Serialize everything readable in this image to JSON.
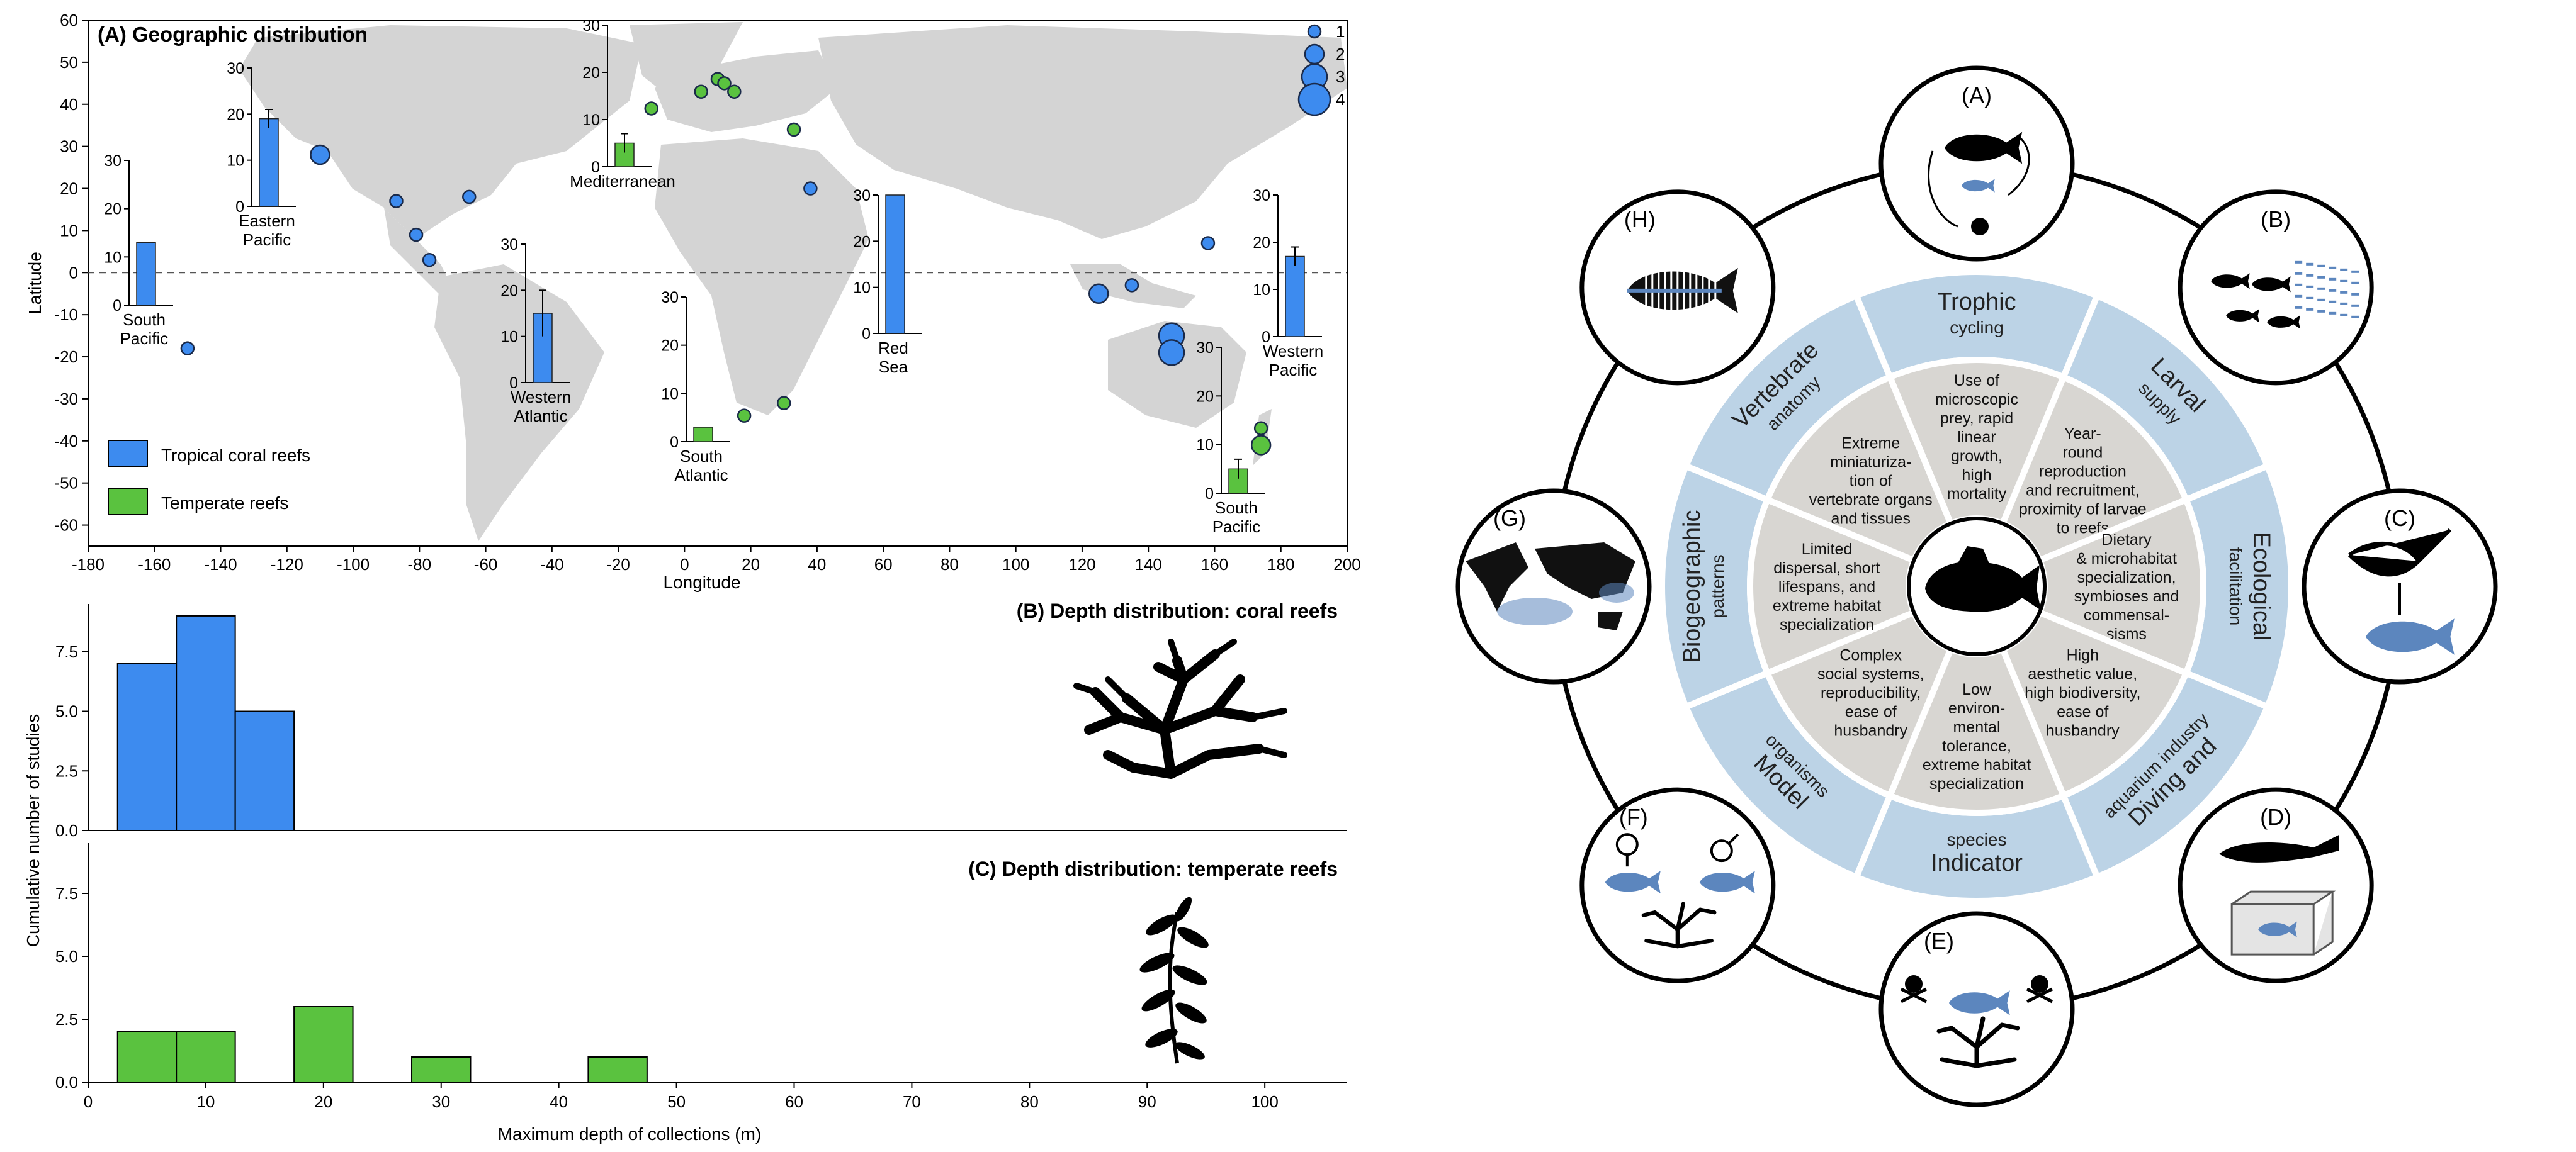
{
  "colors": {
    "tropical": "#3d8bef",
    "temperate": "#5ac23f",
    "land": "#d4d4d4",
    "ring_blue": "#bcd3e6",
    "ring_grey": "#d8d6d2",
    "fish_blue": "#5c86be"
  },
  "panelA": {
    "title": "(A) Geographic distribution",
    "xlabel": "Longitude",
    "ylabel": "Latitude",
    "legend_sizes": [
      "1",
      "2",
      "3",
      "4"
    ],
    "legend_entries": [
      "Tropical coral reefs",
      "Temperate reefs"
    ],
    "insets": [
      {
        "label": "South Pacific",
        "lines": [
          "South",
          "Pacific"
        ],
        "value": 13,
        "err": 0,
        "type": "tropical"
      },
      {
        "label": "Eastern Pacific",
        "lines": [
          "Eastern",
          "Pacific"
        ],
        "value": 19,
        "err": 2,
        "type": "tropical"
      },
      {
        "label": "Western Atlantic",
        "lines": [
          "Western",
          "Atlantic"
        ],
        "value": 15,
        "err": 5,
        "type": "tropical"
      },
      {
        "label": "Mediterranean",
        "lines": [
          "Mediterranean"
        ],
        "value": 5,
        "err": 2,
        "type": "temperate"
      },
      {
        "label": "South Atlantic",
        "lines": [
          "South",
          "Atlantic"
        ],
        "value": 3,
        "err": 0,
        "type": "temperate"
      },
      {
        "label": "Red Sea",
        "lines": [
          "Red",
          "Sea"
        ],
        "value": 30,
        "err": 0,
        "type": "tropical"
      },
      {
        "label": "South Pacific",
        "lines": [
          "South",
          "Pacific"
        ],
        "value": 5,
        "err": 2,
        "type": "temperate"
      },
      {
        "label": "Western Pacific",
        "lines": [
          "Western",
          "Pacific"
        ],
        "value": 17,
        "err": 2,
        "type": "tropical"
      }
    ]
  },
  "chart_data": [
    {
      "type": "scatter",
      "title": "(A) Geographic distribution",
      "xlabel": "Longitude",
      "ylabel": "Latitude",
      "xlim": [
        -180,
        200
      ],
      "ylim": [
        -65,
        60
      ],
      "xticks": [
        -180,
        -160,
        -140,
        -120,
        -100,
        -80,
        -60,
        -40,
        -20,
        0,
        20,
        40,
        60,
        80,
        100,
        120,
        140,
        160,
        180,
        200
      ],
      "yticks": [
        -60,
        -50,
        -40,
        -30,
        -20,
        -10,
        0,
        10,
        20,
        30,
        40,
        50,
        60
      ],
      "series": [
        {
          "name": "Tropical coral reefs",
          "points": [
            {
              "lon": -150,
              "lat": -18,
              "n": 1
            },
            {
              "lon": -110,
              "lat": 28,
              "n": 2
            },
            {
              "lon": -87,
              "lat": 17,
              "n": 1
            },
            {
              "lon": -81,
              "lat": 9,
              "n": 1
            },
            {
              "lon": -77,
              "lat": 3,
              "n": 1
            },
            {
              "lon": -65,
              "lat": 18,
              "n": 1
            },
            {
              "lon": 38,
              "lat": 20,
              "n": 1
            },
            {
              "lon": 125,
              "lat": -5,
              "n": 2
            },
            {
              "lon": 135,
              "lat": -3,
              "n": 1
            },
            {
              "lon": 147,
              "lat": -15,
              "n": 3
            },
            {
              "lon": 147,
              "lat": -19,
              "n": 3
            },
            {
              "lon": 158,
              "lat": 7,
              "n": 1
            }
          ]
        },
        {
          "name": "Temperate reefs",
          "points": [
            {
              "lon": -10,
              "lat": 39,
              "n": 1
            },
            {
              "lon": 5,
              "lat": 43,
              "n": 1
            },
            {
              "lon": 10,
              "lat": 46,
              "n": 1
            },
            {
              "lon": 12,
              "lat": 45,
              "n": 1
            },
            {
              "lon": 15,
              "lat": 43,
              "n": 1
            },
            {
              "lon": 33,
              "lat": 34,
              "n": 1
            },
            {
              "lon": 18,
              "lat": -34,
              "n": 1
            },
            {
              "lon": 30,
              "lat": -31,
              "n": 1
            },
            {
              "lon": 174,
              "lat": -37,
              "n": 1
            },
            {
              "lon": 174,
              "lat": -41,
              "n": 2
            }
          ]
        }
      ]
    },
    {
      "type": "bar",
      "title": "(B) Depth distribution: coral reefs",
      "ylabel": "Cumulative number of studies",
      "x": [
        "2.5-7.5",
        "7.5-12.5",
        "12.5-17.5"
      ],
      "values": [
        7,
        9,
        5
      ],
      "ylim": [
        0,
        9.5
      ],
      "yticks": [
        "0.0",
        "2.5",
        "5.0",
        "7.5"
      ]
    },
    {
      "type": "bar",
      "title": "(C) Depth distribution: temperate reefs",
      "xlabel": "Maximum depth of collections (m)",
      "ylabel": "Cumulative number of studies",
      "x": [
        "2.5-7.5",
        "7.5-12.5",
        "17.5-22.5",
        "27.5-32.5",
        "42.5-47.5"
      ],
      "values": [
        2,
        2,
        3,
        1,
        1
      ],
      "ylim": [
        0,
        9.5
      ],
      "yticks": [
        "0.0",
        "2.5",
        "5.0",
        "7.5"
      ],
      "xticks": [
        "0",
        "10",
        "20",
        "30",
        "40",
        "50",
        "60",
        "70",
        "80",
        "90",
        "100"
      ]
    }
  ],
  "wheel": {
    "center_label": "",
    "outer_letters": [
      "(A)",
      "(B)",
      "(C)",
      "(D)",
      "(E)",
      "(F)",
      "(G)",
      "(H)"
    ],
    "sectors": [
      {
        "title": "Trophic",
        "sub": "cycling",
        "desc": [
          "Use of",
          "microscopic",
          "prey, rapid",
          "linear",
          "growth,",
          "high",
          "mortality"
        ]
      },
      {
        "title": "Larval",
        "sub": "supply",
        "desc": [
          "Year-",
          "round",
          "reproduction",
          "and recruitment,",
          "proximity of larvae",
          "to reefs"
        ]
      },
      {
        "title": "Ecological",
        "sub": "facilitation",
        "desc": [
          "Dietary",
          "& microhabitat",
          "specialization,",
          "symbioses and",
          "commensal-",
          "sisms"
        ]
      },
      {
        "title": "Diving and",
        "sub": "aquarium industry",
        "desc": [
          "High",
          "aesthetic value,",
          "high biodiversity,",
          "ease of",
          "husbandry"
        ]
      },
      {
        "title": "Indicator",
        "sub": "species",
        "desc": [
          "Low",
          "environ-",
          "mental",
          "tolerance,",
          "extreme habitat",
          "specialization"
        ]
      },
      {
        "title": "Model",
        "sub": "organisms",
        "desc": [
          "Complex",
          "social systems,",
          "reproducibility,",
          "ease of",
          "husbandry"
        ]
      },
      {
        "title": "Biogeographic",
        "sub": "patterns",
        "desc": [
          "Limited",
          "dispersal, short",
          "lifespans, and",
          "extreme habitat",
          "specialization"
        ]
      },
      {
        "title": "Vertebrate",
        "sub": "anatomy",
        "desc": [
          "Extreme",
          "miniaturiza-",
          "tion of",
          "vertebrate organs",
          "and tissues"
        ]
      }
    ],
    "icons": [
      "trophic-cycle-icon",
      "larval-school-icon",
      "shrimp-goby-icon",
      "diver-aquarium-icon",
      "toxic-indicator-icon",
      "male-female-fish-icon",
      "world-map-icon",
      "fish-skeleton-icon"
    ]
  }
}
